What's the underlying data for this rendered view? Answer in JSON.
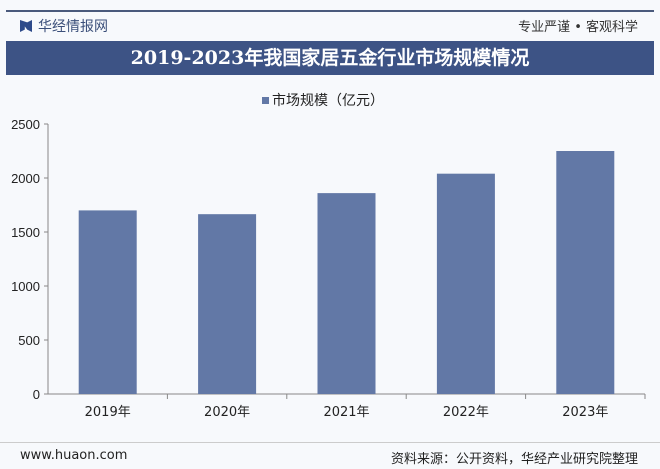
{
  "header": {
    "brand": "华经情报网",
    "slogan": "专业严谨 • 客观科学"
  },
  "chart_data": {
    "type": "bar",
    "title": "2019-2023年我国家居五金行业市场规模情况",
    "categories": [
      "2019年",
      "2020年",
      "2021年",
      "2022年",
      "2023年"
    ],
    "series": [
      {
        "name": "市场规模（亿元）",
        "values": [
          1700,
          1665,
          1860,
          2040,
          2250
        ]
      }
    ],
    "ylim": [
      0,
      2500
    ],
    "yticks": [
      0,
      500,
      1000,
      1500,
      2000,
      2500
    ],
    "legend": "top",
    "grid": false,
    "bar_color": "#6278a6"
  },
  "footer": {
    "url": "www.huaon.com",
    "source": "资料来源：公开资料，华经产业研究院整理"
  }
}
